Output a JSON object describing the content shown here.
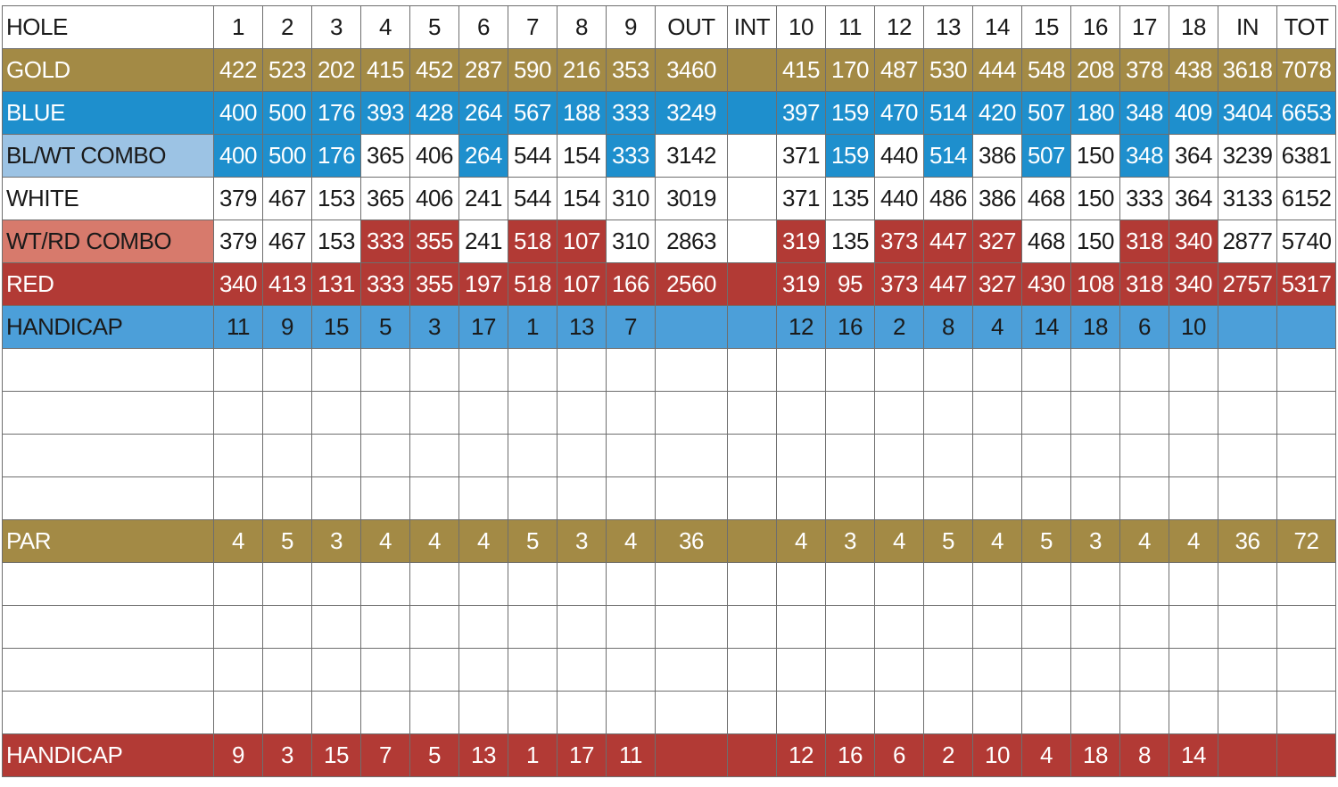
{
  "colors": {
    "gold": "#a38a45",
    "blue": "#1e8fcd",
    "lightblue": "#9cc3e4",
    "pink": "#d77a6c",
    "red": "#b23a35",
    "hcpblue": "#4c9fd9",
    "white": "#ffffff"
  },
  "rows": [
    {
      "name": "header-row",
      "cells": [
        {
          "t": "HOLE",
          "c": "white"
        },
        {
          "t": "1",
          "c": "white"
        },
        {
          "t": "2",
          "c": "white"
        },
        {
          "t": "3",
          "c": "white"
        },
        {
          "t": "4",
          "c": "white"
        },
        {
          "t": "5",
          "c": "white"
        },
        {
          "t": "6",
          "c": "white"
        },
        {
          "t": "7",
          "c": "white"
        },
        {
          "t": "8",
          "c": "white"
        },
        {
          "t": "9",
          "c": "white"
        },
        {
          "t": "OUT",
          "c": "white"
        },
        {
          "t": "INT",
          "c": "white"
        },
        {
          "t": "10",
          "c": "white"
        },
        {
          "t": "11",
          "c": "white"
        },
        {
          "t": "12",
          "c": "white"
        },
        {
          "t": "13",
          "c": "white"
        },
        {
          "t": "14",
          "c": "white"
        },
        {
          "t": "15",
          "c": "white"
        },
        {
          "t": "16",
          "c": "white"
        },
        {
          "t": "17",
          "c": "white"
        },
        {
          "t": "18",
          "c": "white"
        },
        {
          "t": "IN",
          "c": "white"
        },
        {
          "t": "TOT",
          "c": "white"
        }
      ]
    },
    {
      "name": "gold-tee-row",
      "cells": [
        {
          "t": "GOLD",
          "c": "gold"
        },
        {
          "t": "422",
          "c": "gold"
        },
        {
          "t": "523",
          "c": "gold"
        },
        {
          "t": "202",
          "c": "gold"
        },
        {
          "t": "415",
          "c": "gold"
        },
        {
          "t": "452",
          "c": "gold"
        },
        {
          "t": "287",
          "c": "gold"
        },
        {
          "t": "590",
          "c": "gold"
        },
        {
          "t": "216",
          "c": "gold"
        },
        {
          "t": "353",
          "c": "gold"
        },
        {
          "t": "3460",
          "c": "gold"
        },
        {
          "t": "",
          "c": "gold"
        },
        {
          "t": "415",
          "c": "gold"
        },
        {
          "t": "170",
          "c": "gold"
        },
        {
          "t": "487",
          "c": "gold"
        },
        {
          "t": "530",
          "c": "gold"
        },
        {
          "t": "444",
          "c": "gold"
        },
        {
          "t": "548",
          "c": "gold"
        },
        {
          "t": "208",
          "c": "gold"
        },
        {
          "t": "378",
          "c": "gold"
        },
        {
          "t": "438",
          "c": "gold"
        },
        {
          "t": "3618",
          "c": "gold"
        },
        {
          "t": "7078",
          "c": "gold"
        }
      ]
    },
    {
      "name": "blue-tee-row",
      "cells": [
        {
          "t": "BLUE",
          "c": "blue"
        },
        {
          "t": "400",
          "c": "blue"
        },
        {
          "t": "500",
          "c": "blue"
        },
        {
          "t": "176",
          "c": "blue"
        },
        {
          "t": "393",
          "c": "blue"
        },
        {
          "t": "428",
          "c": "blue"
        },
        {
          "t": "264",
          "c": "blue"
        },
        {
          "t": "567",
          "c": "blue"
        },
        {
          "t": "188",
          "c": "blue"
        },
        {
          "t": "333",
          "c": "blue"
        },
        {
          "t": "3249",
          "c": "blue"
        },
        {
          "t": "",
          "c": "blue"
        },
        {
          "t": "397",
          "c": "blue"
        },
        {
          "t": "159",
          "c": "blue"
        },
        {
          "t": "470",
          "c": "blue"
        },
        {
          "t": "514",
          "c": "blue"
        },
        {
          "t": "420",
          "c": "blue"
        },
        {
          "t": "507",
          "c": "blue"
        },
        {
          "t": "180",
          "c": "blue"
        },
        {
          "t": "348",
          "c": "blue"
        },
        {
          "t": "409",
          "c": "blue"
        },
        {
          "t": "3404",
          "c": "blue"
        },
        {
          "t": "6653",
          "c": "blue"
        }
      ]
    },
    {
      "name": "blue-white-combo-row",
      "cells": [
        {
          "t": "BL/WT COMBO",
          "c": "lightblue"
        },
        {
          "t": "400",
          "c": "blue"
        },
        {
          "t": "500",
          "c": "blue"
        },
        {
          "t": "176",
          "c": "blue"
        },
        {
          "t": "365",
          "c": "white"
        },
        {
          "t": "406",
          "c": "white"
        },
        {
          "t": "264",
          "c": "blue"
        },
        {
          "t": "544",
          "c": "white"
        },
        {
          "t": "154",
          "c": "white"
        },
        {
          "t": "333",
          "c": "blue"
        },
        {
          "t": "3142",
          "c": "white"
        },
        {
          "t": "",
          "c": "white"
        },
        {
          "t": "371",
          "c": "white"
        },
        {
          "t": "159",
          "c": "blue"
        },
        {
          "t": "440",
          "c": "white"
        },
        {
          "t": "514",
          "c": "blue"
        },
        {
          "t": "386",
          "c": "white"
        },
        {
          "t": "507",
          "c": "blue"
        },
        {
          "t": "150",
          "c": "white"
        },
        {
          "t": "348",
          "c": "blue"
        },
        {
          "t": "364",
          "c": "white"
        },
        {
          "t": "3239",
          "c": "white"
        },
        {
          "t": "6381",
          "c": "white"
        }
      ]
    },
    {
      "name": "white-tee-row",
      "cells": [
        {
          "t": "WHITE",
          "c": "white"
        },
        {
          "t": "379",
          "c": "white"
        },
        {
          "t": "467",
          "c": "white"
        },
        {
          "t": "153",
          "c": "white"
        },
        {
          "t": "365",
          "c": "white"
        },
        {
          "t": "406",
          "c": "white"
        },
        {
          "t": "241",
          "c": "white"
        },
        {
          "t": "544",
          "c": "white"
        },
        {
          "t": "154",
          "c": "white"
        },
        {
          "t": "310",
          "c": "white"
        },
        {
          "t": "3019",
          "c": "white"
        },
        {
          "t": "",
          "c": "white"
        },
        {
          "t": "371",
          "c": "white"
        },
        {
          "t": "135",
          "c": "white"
        },
        {
          "t": "440",
          "c": "white"
        },
        {
          "t": "486",
          "c": "white"
        },
        {
          "t": "386",
          "c": "white"
        },
        {
          "t": "468",
          "c": "white"
        },
        {
          "t": "150",
          "c": "white"
        },
        {
          "t": "333",
          "c": "white"
        },
        {
          "t": "364",
          "c": "white"
        },
        {
          "t": "3133",
          "c": "white"
        },
        {
          "t": "6152",
          "c": "white"
        }
      ]
    },
    {
      "name": "white-red-combo-row",
      "cells": [
        {
          "t": "WT/RD COMBO",
          "c": "pink"
        },
        {
          "t": "379",
          "c": "white"
        },
        {
          "t": "467",
          "c": "white"
        },
        {
          "t": "153",
          "c": "white"
        },
        {
          "t": "333",
          "c": "red"
        },
        {
          "t": "355",
          "c": "red"
        },
        {
          "t": "241",
          "c": "white"
        },
        {
          "t": "518",
          "c": "red"
        },
        {
          "t": "107",
          "c": "red"
        },
        {
          "t": "310",
          "c": "white"
        },
        {
          "t": "2863",
          "c": "white"
        },
        {
          "t": "",
          "c": "white"
        },
        {
          "t": "319",
          "c": "red"
        },
        {
          "t": "135",
          "c": "white"
        },
        {
          "t": "373",
          "c": "red"
        },
        {
          "t": "447",
          "c": "red"
        },
        {
          "t": "327",
          "c": "red"
        },
        {
          "t": "468",
          "c": "white"
        },
        {
          "t": "150",
          "c": "white"
        },
        {
          "t": "318",
          "c": "red"
        },
        {
          "t": "340",
          "c": "red"
        },
        {
          "t": "2877",
          "c": "white"
        },
        {
          "t": "5740",
          "c": "white"
        }
      ]
    },
    {
      "name": "red-tee-row",
      "cells": [
        {
          "t": "RED",
          "c": "red"
        },
        {
          "t": "340",
          "c": "red"
        },
        {
          "t": "413",
          "c": "red"
        },
        {
          "t": "131",
          "c": "red"
        },
        {
          "t": "333",
          "c": "red"
        },
        {
          "t": "355",
          "c": "red"
        },
        {
          "t": "197",
          "c": "red"
        },
        {
          "t": "518",
          "c": "red"
        },
        {
          "t": "107",
          "c": "red"
        },
        {
          "t": "166",
          "c": "red"
        },
        {
          "t": "2560",
          "c": "red"
        },
        {
          "t": "",
          "c": "red"
        },
        {
          "t": "319",
          "c": "red"
        },
        {
          "t": "95",
          "c": "red"
        },
        {
          "t": "373",
          "c": "red"
        },
        {
          "t": "447",
          "c": "red"
        },
        {
          "t": "327",
          "c": "red"
        },
        {
          "t": "430",
          "c": "red"
        },
        {
          "t": "108",
          "c": "red"
        },
        {
          "t": "318",
          "c": "red"
        },
        {
          "t": "340",
          "c": "red"
        },
        {
          "t": "2757",
          "c": "red"
        },
        {
          "t": "5317",
          "c": "red"
        }
      ]
    },
    {
      "name": "handicap-men-row",
      "cells": [
        {
          "t": "HANDICAP",
          "c": "hcpblue"
        },
        {
          "t": "11",
          "c": "hcpblue"
        },
        {
          "t": "9",
          "c": "hcpblue"
        },
        {
          "t": "15",
          "c": "hcpblue"
        },
        {
          "t": "5",
          "c": "hcpblue"
        },
        {
          "t": "3",
          "c": "hcpblue"
        },
        {
          "t": "17",
          "c": "hcpblue"
        },
        {
          "t": "1",
          "c": "hcpblue"
        },
        {
          "t": "13",
          "c": "hcpblue"
        },
        {
          "t": "7",
          "c": "hcpblue"
        },
        {
          "t": "",
          "c": "hcpblue"
        },
        {
          "t": "",
          "c": "hcpblue"
        },
        {
          "t": "12",
          "c": "hcpblue"
        },
        {
          "t": "16",
          "c": "hcpblue"
        },
        {
          "t": "2",
          "c": "hcpblue"
        },
        {
          "t": "8",
          "c": "hcpblue"
        },
        {
          "t": "4",
          "c": "hcpblue"
        },
        {
          "t": "14",
          "c": "hcpblue"
        },
        {
          "t": "18",
          "c": "hcpblue"
        },
        {
          "t": "6",
          "c": "hcpblue"
        },
        {
          "t": "10",
          "c": "hcpblue"
        },
        {
          "t": "",
          "c": "hcpblue"
        },
        {
          "t": "",
          "c": "hcpblue"
        }
      ]
    },
    {
      "name": "score-entry-row",
      "blank": true
    },
    {
      "name": "score-entry-row",
      "blank": true
    },
    {
      "name": "score-entry-row",
      "blank": true
    },
    {
      "name": "score-entry-row",
      "blank": true
    },
    {
      "name": "par-row",
      "cells": [
        {
          "t": "PAR",
          "c": "gold"
        },
        {
          "t": "4",
          "c": "gold"
        },
        {
          "t": "5",
          "c": "gold"
        },
        {
          "t": "3",
          "c": "gold"
        },
        {
          "t": "4",
          "c": "gold"
        },
        {
          "t": "4",
          "c": "gold"
        },
        {
          "t": "4",
          "c": "gold"
        },
        {
          "t": "5",
          "c": "gold"
        },
        {
          "t": "3",
          "c": "gold"
        },
        {
          "t": "4",
          "c": "gold"
        },
        {
          "t": "36",
          "c": "gold"
        },
        {
          "t": "",
          "c": "gold"
        },
        {
          "t": "4",
          "c": "gold"
        },
        {
          "t": "3",
          "c": "gold"
        },
        {
          "t": "4",
          "c": "gold"
        },
        {
          "t": "5",
          "c": "gold"
        },
        {
          "t": "4",
          "c": "gold"
        },
        {
          "t": "5",
          "c": "gold"
        },
        {
          "t": "3",
          "c": "gold"
        },
        {
          "t": "4",
          "c": "gold"
        },
        {
          "t": "4",
          "c": "gold"
        },
        {
          "t": "36",
          "c": "gold"
        },
        {
          "t": "72",
          "c": "gold"
        }
      ]
    },
    {
      "name": "score-entry-row",
      "blank": true
    },
    {
      "name": "score-entry-row",
      "blank": true
    },
    {
      "name": "score-entry-row",
      "blank": true
    },
    {
      "name": "score-entry-row",
      "blank": true
    },
    {
      "name": "handicap-women-row",
      "cells": [
        {
          "t": "HANDICAP",
          "c": "red"
        },
        {
          "t": "9",
          "c": "red"
        },
        {
          "t": "3",
          "c": "red"
        },
        {
          "t": "15",
          "c": "red"
        },
        {
          "t": "7",
          "c": "red"
        },
        {
          "t": "5",
          "c": "red"
        },
        {
          "t": "13",
          "c": "red"
        },
        {
          "t": "1",
          "c": "red"
        },
        {
          "t": "17",
          "c": "red"
        },
        {
          "t": "11",
          "c": "red"
        },
        {
          "t": "",
          "c": "red"
        },
        {
          "t": "",
          "c": "red"
        },
        {
          "t": "12",
          "c": "red"
        },
        {
          "t": "16",
          "c": "red"
        },
        {
          "t": "6",
          "c": "red"
        },
        {
          "t": "2",
          "c": "red"
        },
        {
          "t": "10",
          "c": "red"
        },
        {
          "t": "4",
          "c": "red"
        },
        {
          "t": "18",
          "c": "red"
        },
        {
          "t": "8",
          "c": "red"
        },
        {
          "t": "14",
          "c": "red"
        },
        {
          "t": "",
          "c": "red"
        },
        {
          "t": "",
          "c": "red"
        }
      ]
    }
  ]
}
